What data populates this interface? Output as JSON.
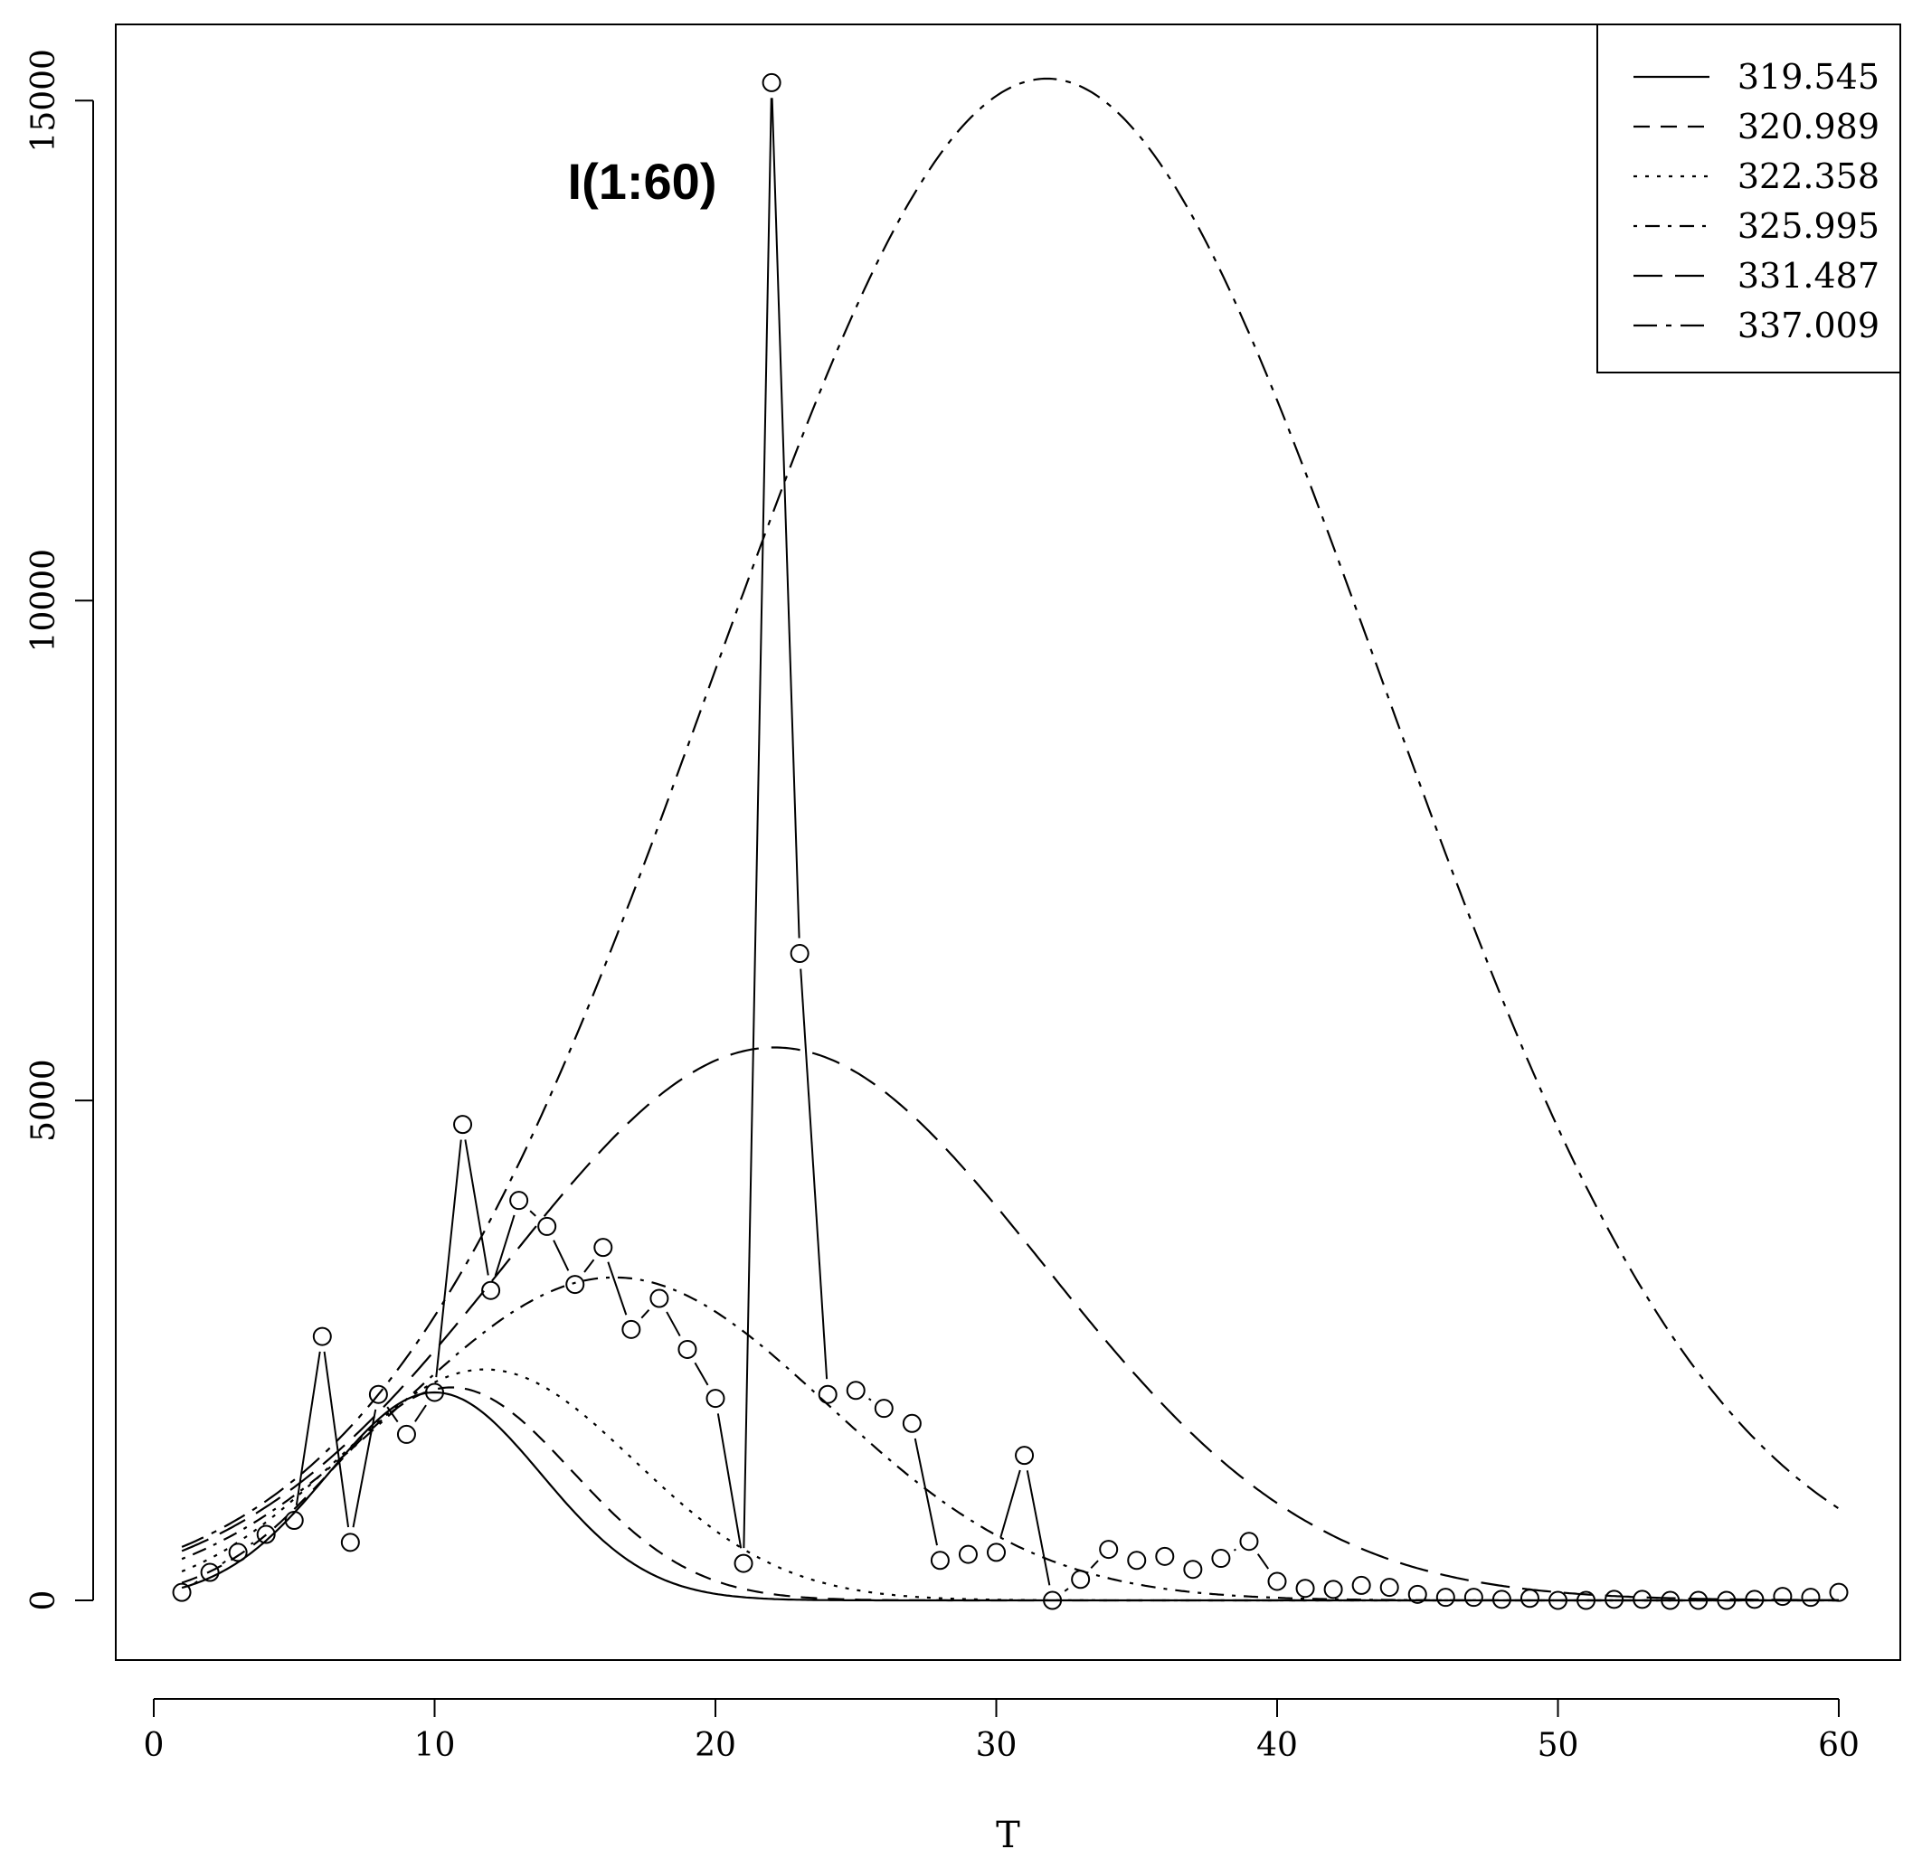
{
  "chart_data": {
    "type": "line",
    "title": "I(1:60)",
    "xlabel": "T",
    "ylabel": "",
    "xlim": [
      0,
      61
    ],
    "ylim": [
      -500,
      15800
    ],
    "xticks": [
      0,
      10,
      20,
      30,
      40,
      50,
      60
    ],
    "yticks": [
      0,
      5000,
      10000,
      15000
    ],
    "grid": false,
    "legend_position": "top-right",
    "observed": {
      "x": [
        1,
        2,
        3,
        4,
        5,
        6,
        7,
        8,
        9,
        10,
        11,
        12,
        13,
        14,
        15,
        16,
        17,
        18,
        19,
        20,
        21,
        22,
        23,
        24,
        25,
        26,
        27,
        28,
        29,
        30,
        31,
        32,
        33,
        34,
        35,
        36,
        37,
        38,
        39,
        40,
        41,
        42,
        43,
        44,
        45,
        46,
        47,
        48,
        49,
        50,
        51,
        52,
        53,
        54,
        55,
        56,
        57,
        58,
        59,
        60
      ],
      "y": [
        80,
        280,
        480,
        660,
        800,
        2640,
        580,
        2060,
        1660,
        2080,
        4760,
        3100,
        4000,
        3740,
        3160,
        3530,
        2710,
        3020,
        2510,
        2020,
        370,
        15180,
        6470,
        2060,
        2100,
        1920,
        1770,
        400,
        460,
        480,
        1450,
        0,
        210,
        510,
        400,
        440,
        310,
        420,
        590,
        190,
        120,
        110,
        150,
        130,
        60,
        30,
        30,
        10,
        20,
        0,
        0,
        10,
        10,
        0,
        0,
        0,
        10,
        40,
        30,
        80
      ]
    },
    "series": [
      {
        "name": "319.545",
        "dash": "",
        "peak_x": 10.0,
        "peak_y": 2080,
        "sigma": 3.8
      },
      {
        "name": "320.989",
        "dash": "18,12",
        "peak_x": 10.6,
        "peak_y": 2130,
        "sigma": 4.3
      },
      {
        "name": "322.358",
        "dash": "4,9",
        "peak_x": 11.8,
        "peak_y": 2310,
        "sigma": 5.3
      },
      {
        "name": "325.995",
        "dash": "4,9,16,9",
        "peak_x": 16.4,
        "peak_y": 3230,
        "sigma": 7.6
      },
      {
        "name": "331.487",
        "dash": "32,14",
        "peak_x": 22.1,
        "peak_y": 5530,
        "sigma": 9.6
      },
      {
        "name": "337.009",
        "dash": "26,10,6,10",
        "peak_x": 31.8,
        "peak_y": 15220,
        "sigma": 11.9
      }
    ]
  }
}
